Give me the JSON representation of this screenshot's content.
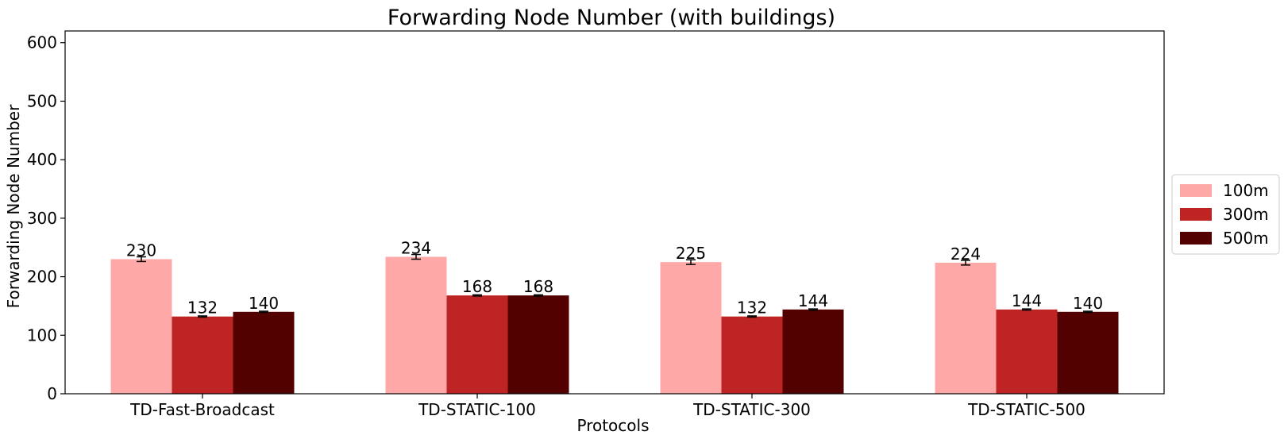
{
  "chart_data": {
    "type": "bar",
    "title": "Forwarding Node Number (with buildings)",
    "xlabel": "Protocols",
    "ylabel": "Forwarding Node Number",
    "categories": [
      "TD-Fast-Broadcast",
      "TD-STATIC-100",
      "TD-STATIC-300",
      "TD-STATIC-500"
    ],
    "ylim": [
      0,
      620
    ],
    "yticks": [
      0,
      100,
      200,
      300,
      400,
      500,
      600
    ],
    "series": [
      {
        "name": "100m",
        "color": "#ffa8a8",
        "values": [
          230,
          234,
          225,
          224
        ],
        "errors": [
          4,
          4,
          4,
          4
        ]
      },
      {
        "name": "300m",
        "color": "#bf2424",
        "values": [
          132,
          168,
          132,
          144
        ],
        "errors": [
          1,
          1,
          1,
          1
        ]
      },
      {
        "name": "500m",
        "color": "#530000",
        "values": [
          140,
          168,
          144,
          140
        ],
        "errors": [
          1,
          1,
          1,
          1
        ]
      }
    ],
    "legend_position": "right",
    "grid": false
  }
}
